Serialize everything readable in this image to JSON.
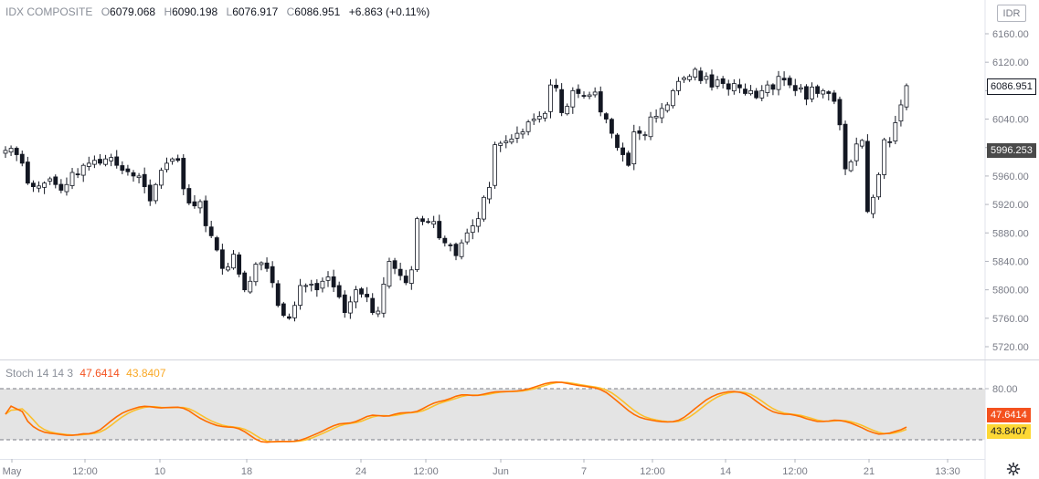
{
  "symbol": "IDX COMPOSITE",
  "currency_button": "IDR",
  "ohlc": {
    "o_label": "O",
    "open": "6079.068",
    "h_label": "H",
    "high": "6090.198",
    "l_label": "L",
    "low": "6076.917",
    "c_label": "C",
    "close": "6086.951",
    "change": "+6.863 (+0.11%)"
  },
  "price_tags": {
    "last": "6086.951",
    "crosshair": "5996.253"
  },
  "stoch_legend": {
    "name": "Stoch 14 14 3",
    "k": "47.6414",
    "d": "43.8407"
  },
  "stoch_tags": {
    "k": "47.6414",
    "d": "43.8407"
  },
  "colors": {
    "up_body": "#ffffff",
    "down_body": "#131722",
    "wick": "#131722",
    "k_line": "#ff6d00",
    "d_line": "#fbc02d",
    "band_fill": "#e4e4e4",
    "k_tag": "#f4511e",
    "d_tag": "#fdd835"
  },
  "icons": {
    "settings": "gear-icon"
  },
  "chart_data": [
    {
      "type": "candlestick",
      "title": "IDX COMPOSITE",
      "ylim": [
        5700,
        6180
      ],
      "y_ticks": [
        6160,
        6120,
        6080,
        6040,
        6000,
        5960,
        5920,
        5880,
        5840,
        5800,
        5760,
        5720
      ],
      "x_ticks": [
        "May",
        "12:00",
        "10",
        "18",
        "24",
        "12:00",
        "Jun",
        "7",
        "12:00",
        "14",
        "12:00",
        "21",
        "13:30"
      ],
      "closes": [
        5996,
        5999,
        5990,
        5978,
        5950,
        5945,
        5946,
        5950,
        5956,
        5948,
        5940,
        5948,
        5965,
        5962,
        5975,
        5978,
        5982,
        5978,
        5984,
        5986,
        5975,
        5968,
        5966,
        5960,
        5960,
        5945,
        5925,
        5948,
        5968,
        5978,
        5984,
        5982,
        5942,
        5922,
        5918,
        5924,
        5890,
        5876,
        5856,
        5830,
        5832,
        5850,
        5822,
        5800,
        5812,
        5836,
        5838,
        5830,
        5810,
        5778,
        5764,
        5760,
        5778,
        5806,
        5806,
        5808,
        5800,
        5812,
        5818,
        5804,
        5790,
        5768,
        5783,
        5800,
        5794,
        5790,
        5768,
        5770,
        5808,
        5840,
        5830,
        5820,
        5810,
        5828,
        5900,
        5896,
        5895,
        5896,
        5873,
        5866,
        5862,
        5848,
        5866,
        5880,
        5890,
        5900,
        5930,
        5944,
        6004,
        6006,
        6009,
        6012,
        6020,
        6022,
        6036,
        6040,
        6044,
        6048,
        6088,
        6084,
        6049,
        6058,
        6080,
        6076,
        6072,
        6074,
        6078,
        6050,
        6040,
        6020,
        6000,
        5990,
        5975,
        6022,
        6020,
        6018,
        6043,
        6044,
        6055,
        6060,
        6080,
        6093,
        6098,
        6100,
        6110,
        6094,
        6100,
        6085,
        6095,
        6090,
        6082,
        6090,
        6084,
        6076,
        6080,
        6070,
        6080,
        6088,
        6082,
        6100,
        6095,
        6088,
        6080,
        6084,
        6068,
        6085,
        6076,
        6080,
        6076,
        6065,
        6032,
        5970,
        5980,
        6005,
        6010,
        5910,
        5930,
        5962,
        6011,
        6008,
        6035,
        6060,
        6087
      ],
      "series": [
        {
          "name": "Stoch 14 14 3",
          "ylim": [
            0,
            100
          ],
          "bands": [
            20,
            80
          ],
          "y_ticks": [
            80
          ]
        }
      ]
    }
  ]
}
